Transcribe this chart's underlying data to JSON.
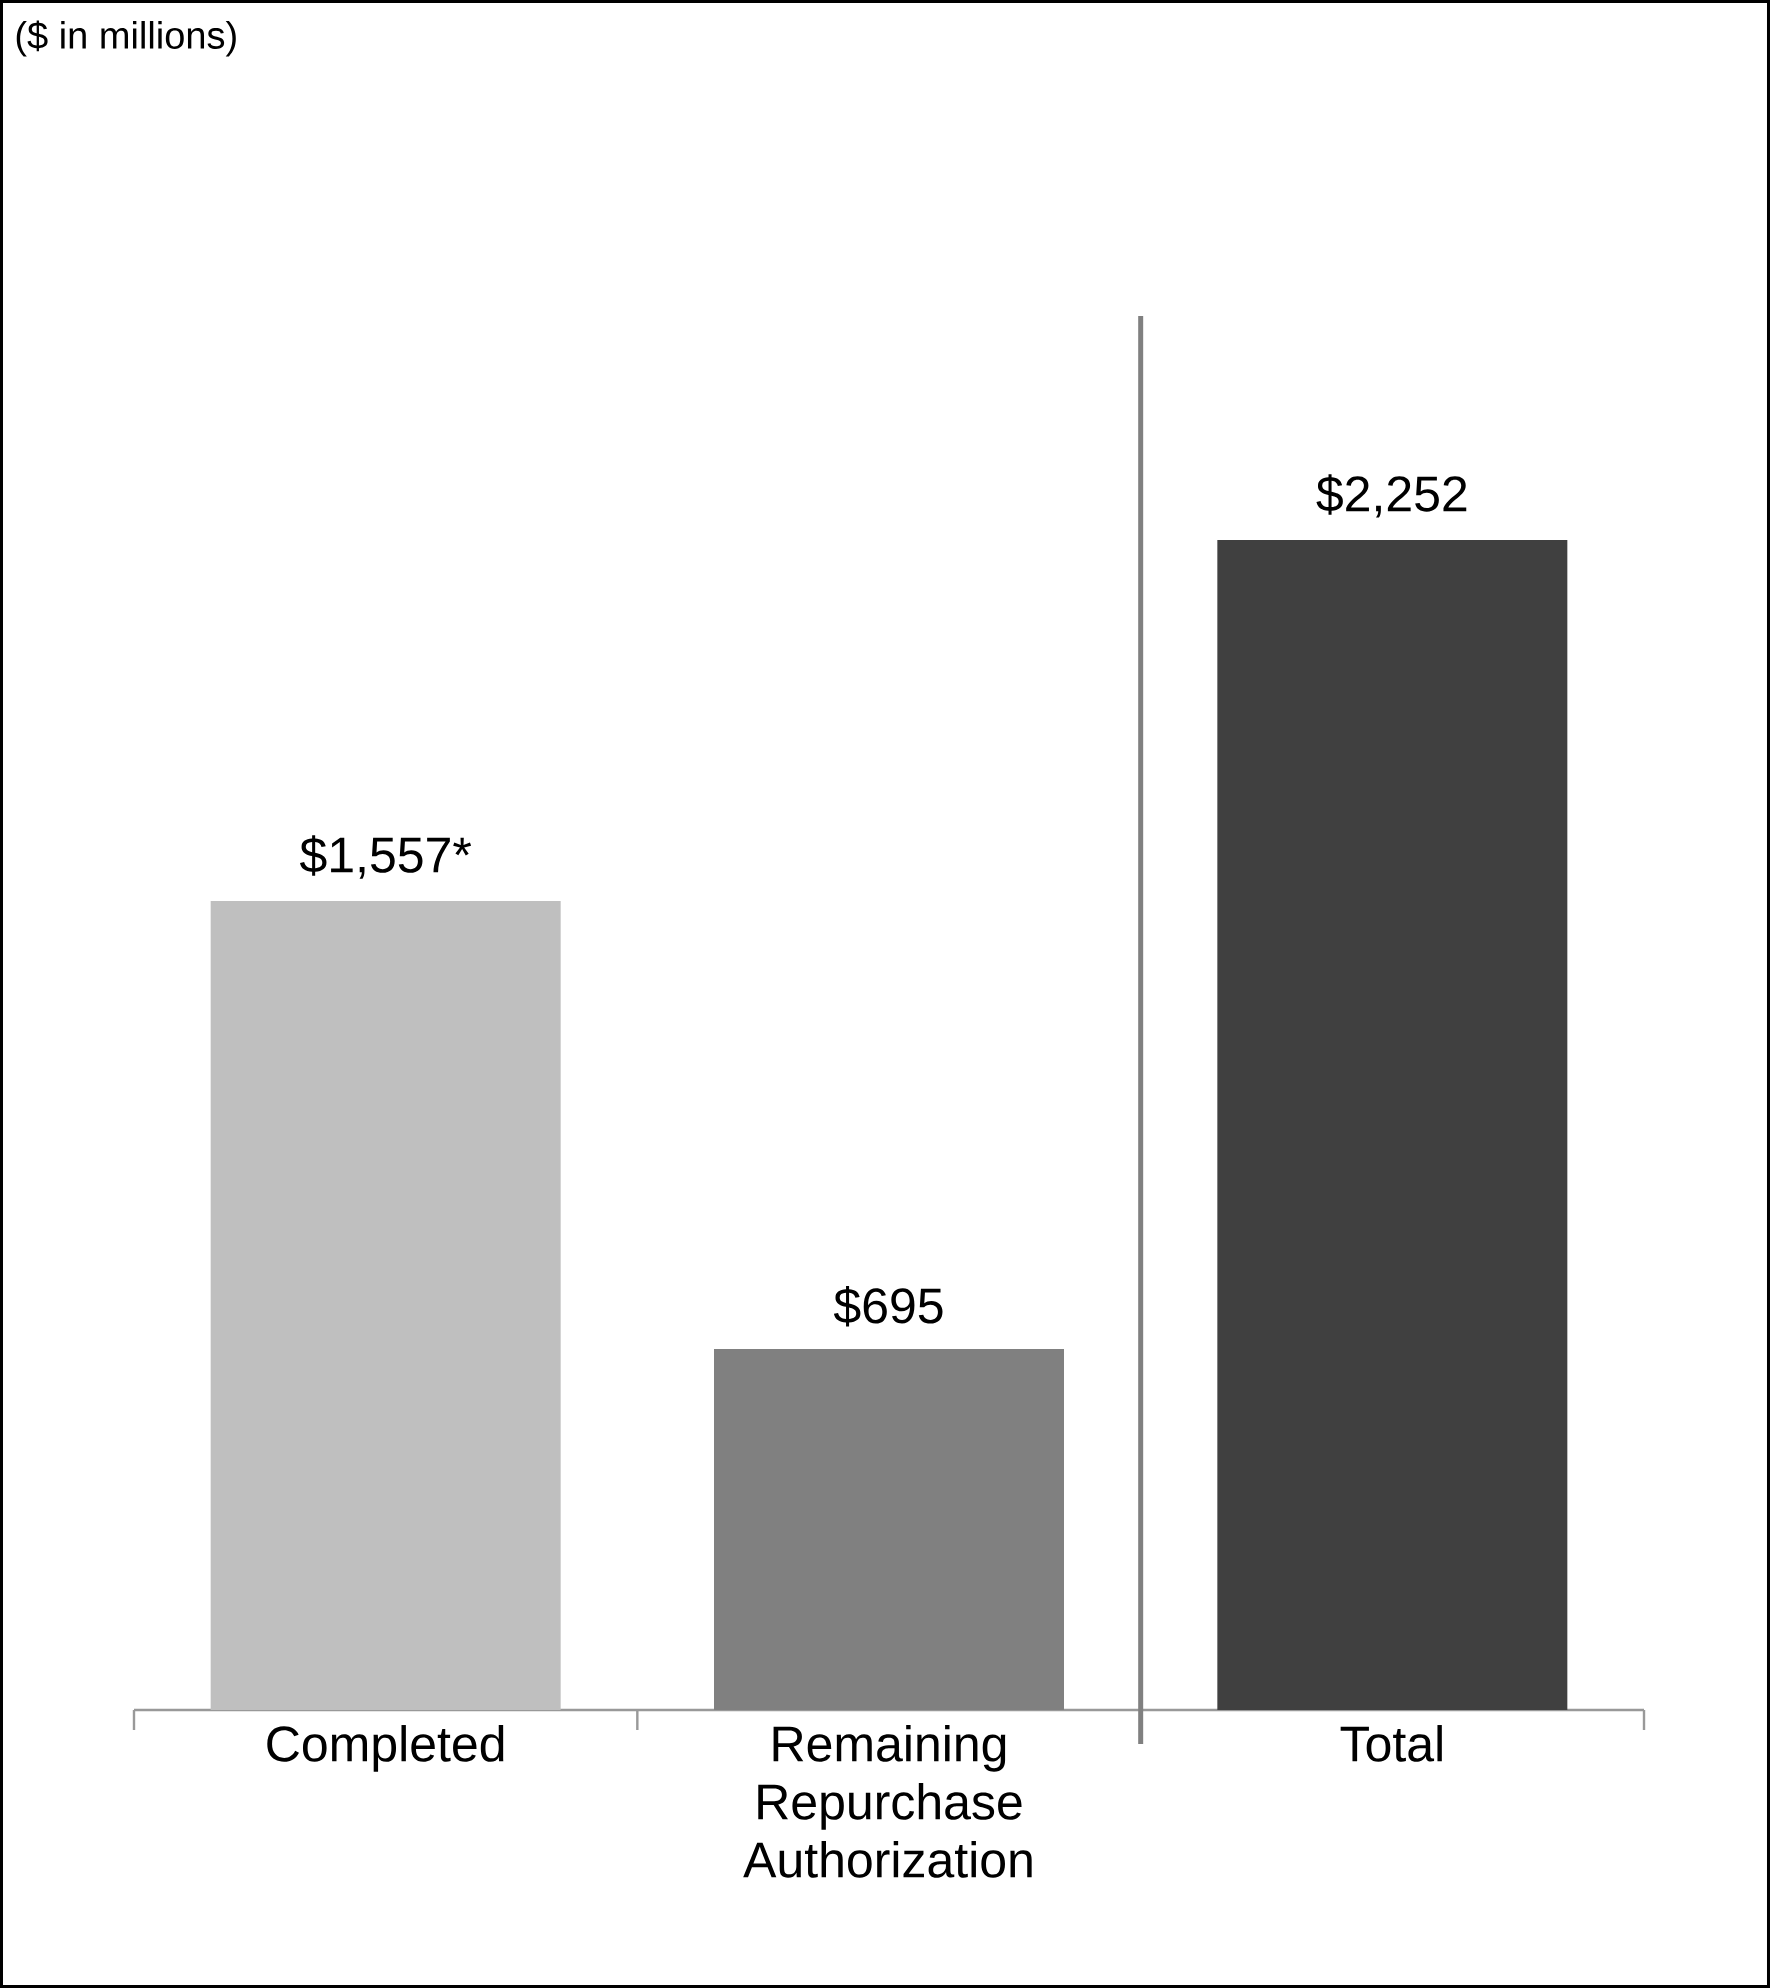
{
  "chart_data": {
    "type": "bar",
    "annotations": [
      "($ in millions)"
    ],
    "categories": [
      "Completed",
      "Remaining Repurchase Authorization",
      "Total"
    ],
    "values": [
      1557,
      695,
      2252
    ],
    "colors": [
      "#bfbfbf",
      "#808080",
      "#404040"
    ],
    "value_labels": [
      "$1,557*",
      "$695",
      "$2,252"
    ]
  }
}
